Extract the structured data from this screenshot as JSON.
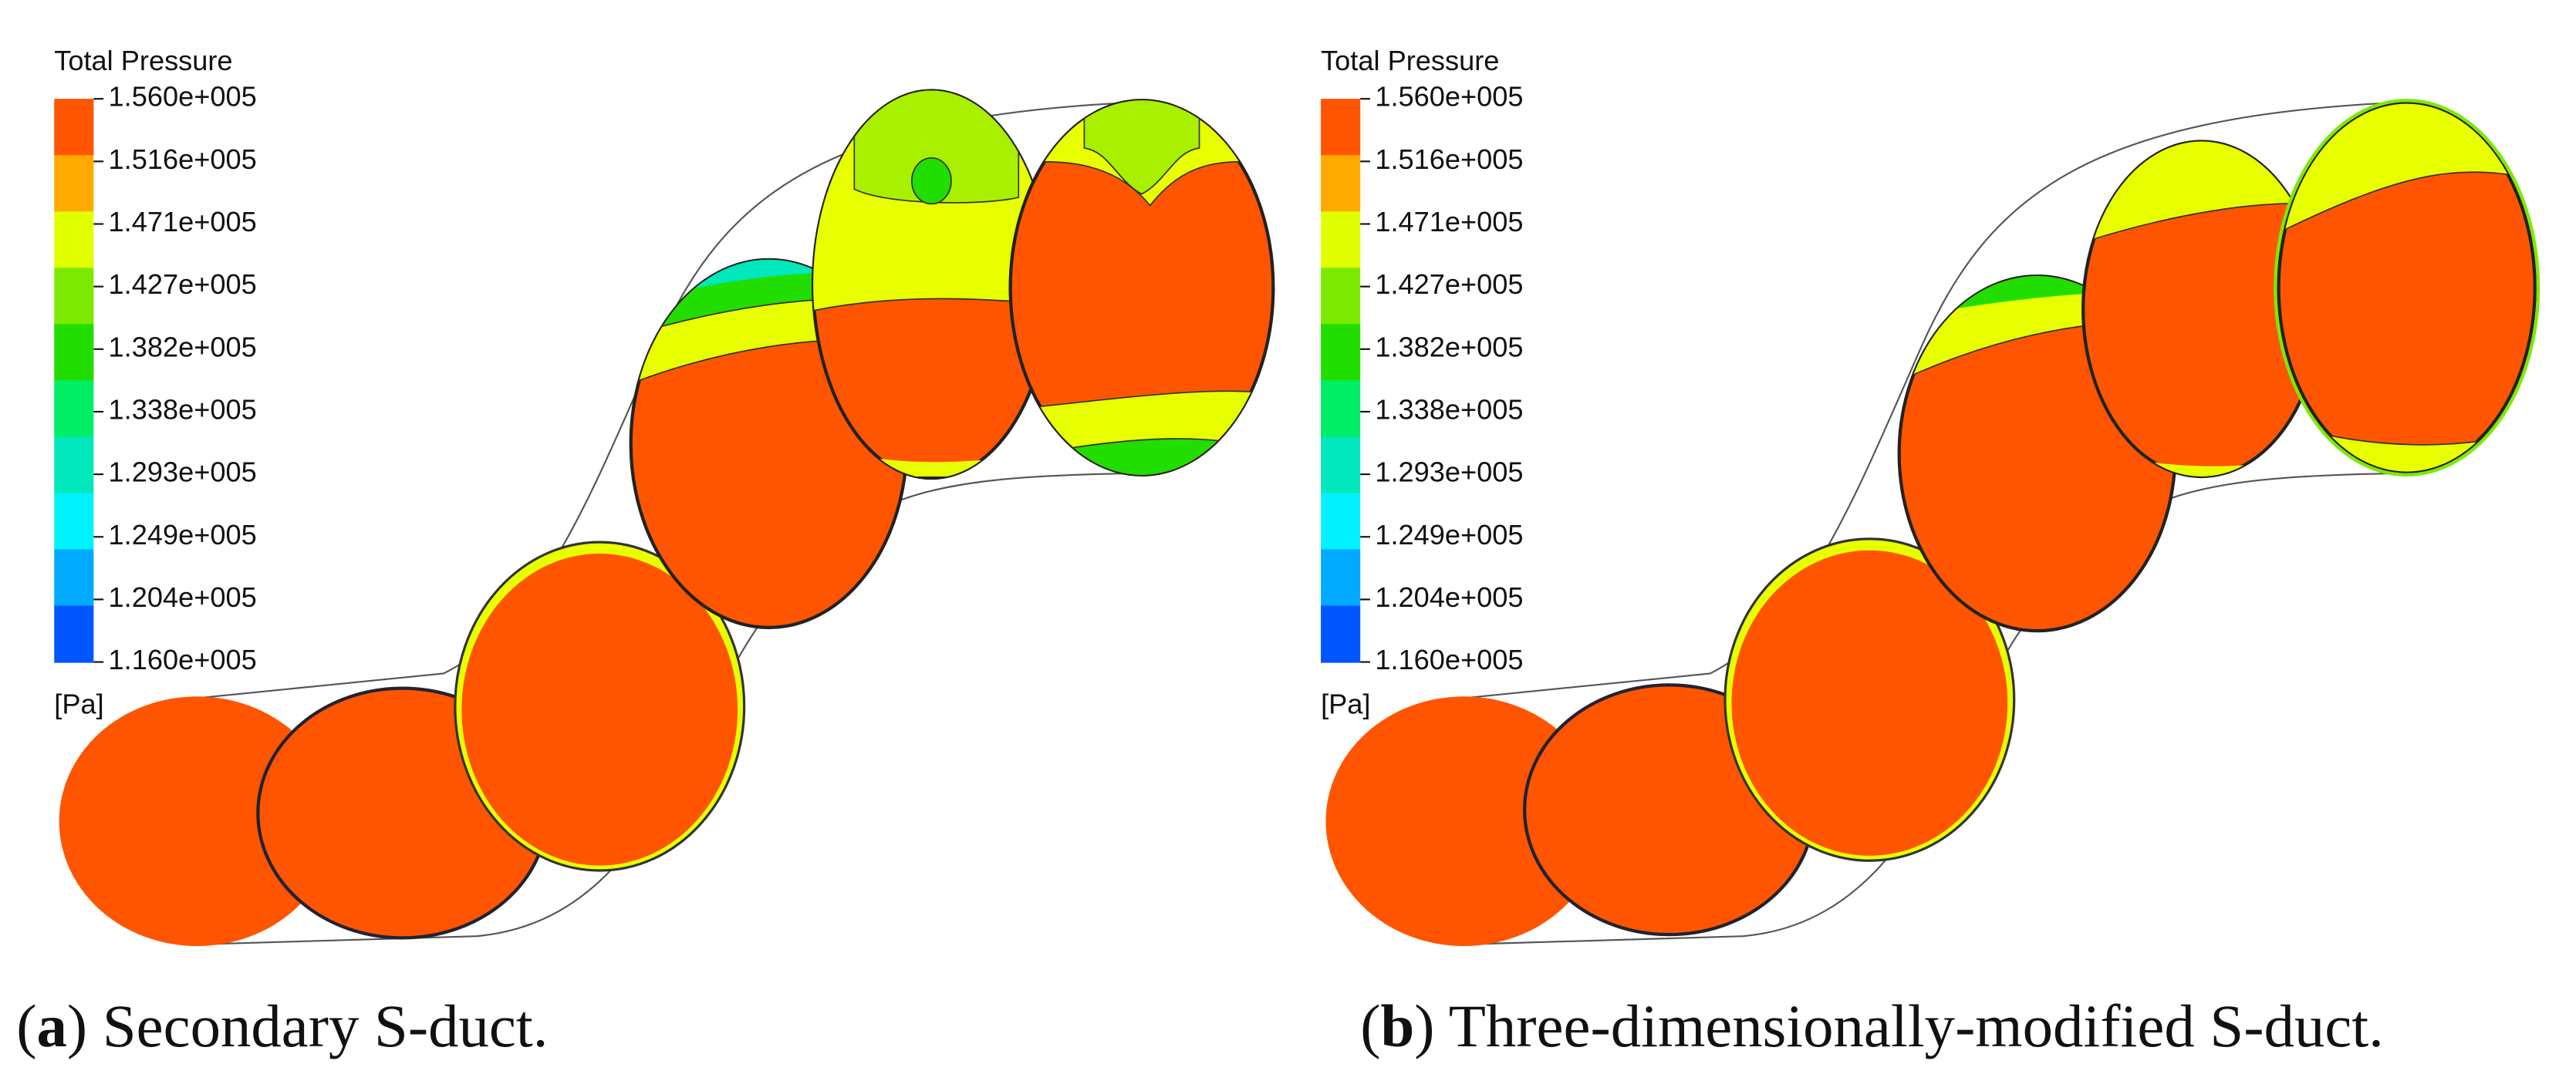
{
  "panels": [
    {
      "legend": {
        "title": "Total Pressure",
        "labels": [
          "1.560e+005",
          "1.516e+005",
          "1.471e+005",
          "1.427e+005",
          "1.382e+005",
          "1.338e+005",
          "1.293e+005",
          "1.249e+005",
          "1.204e+005",
          "1.160e+005"
        ],
        "colors": [
          "#ff5500",
          "#ffaa00",
          "#e2ff00",
          "#7cea00",
          "#22dd00",
          "#00ee66",
          "#00e8bb",
          "#00f2ff",
          "#00aaff",
          "#0055ff"
        ],
        "unit": "[Pa]"
      },
      "caption": {
        "open": "(",
        "label": "a",
        "text": ") Secondary S-duct."
      }
    },
    {
      "legend": {
        "title": "Total Pressure",
        "labels": [
          "1.560e+005",
          "1.516e+005",
          "1.471e+005",
          "1.427e+005",
          "1.382e+005",
          "1.338e+005",
          "1.293e+005",
          "1.249e+005",
          "1.204e+005",
          "1.160e+005"
        ],
        "colors": [
          "#ff5500",
          "#ffaa00",
          "#e2ff00",
          "#7cea00",
          "#22dd00",
          "#00ee66",
          "#00e8bb",
          "#00f2ff",
          "#00aaff",
          "#0055ff"
        ],
        "unit": "[Pa]"
      },
      "caption": {
        "open": "(",
        "label": "b",
        "text": ") Three-dimensionally-modified S-duct."
      }
    }
  ]
}
